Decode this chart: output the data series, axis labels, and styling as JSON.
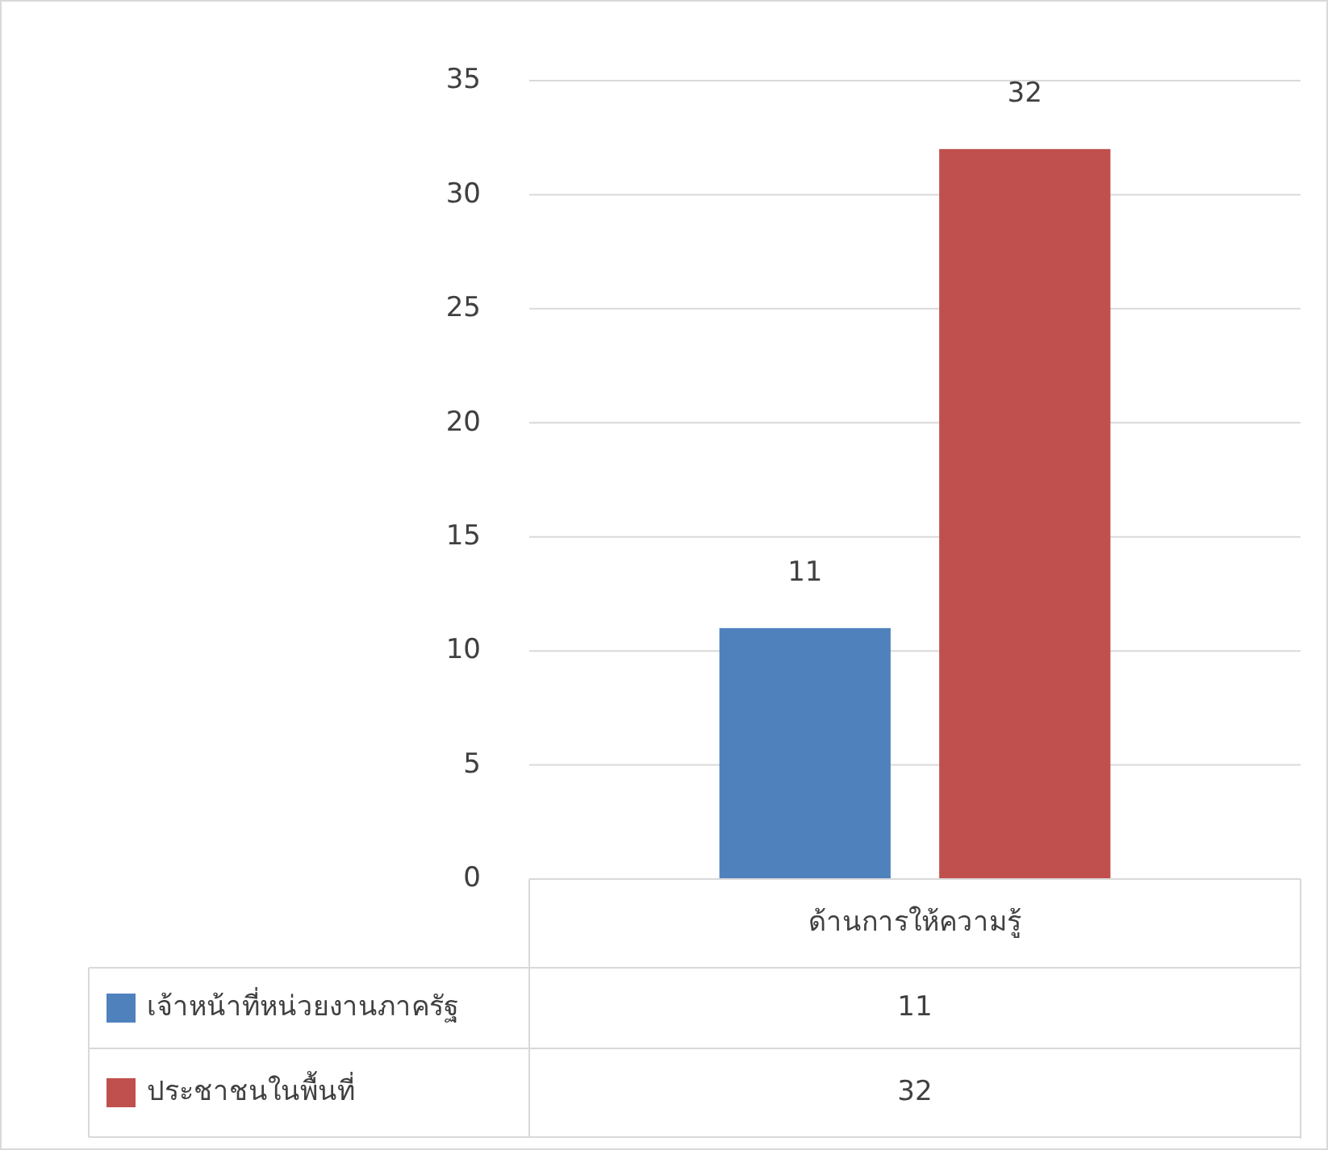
{
  "chart_data": {
    "type": "bar",
    "categories": [
      "ด้านการให้ความรู้"
    ],
    "series": [
      {
        "name": "เจ้าหน้าที่หน่วยงานภาครัฐ",
        "color": "#4f81bd",
        "values": [
          11
        ]
      },
      {
        "name": "ประชาชนในพื้นที่",
        "color": "#c0504d",
        "values": [
          32
        ]
      }
    ],
    "ylim": [
      0,
      35
    ],
    "yticks": [
      0,
      5,
      10,
      15,
      20,
      25,
      30,
      35
    ],
    "grid": "y",
    "data_labels": true,
    "legend": "bottom",
    "annotations": [
      "11",
      "32"
    ]
  }
}
